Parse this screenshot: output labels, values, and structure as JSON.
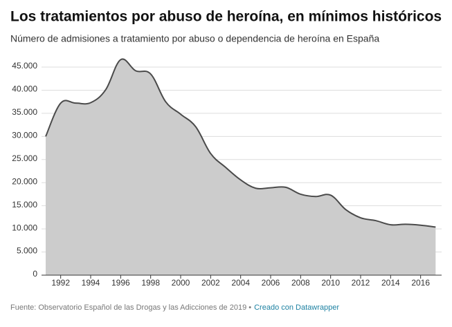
{
  "chart_data": {
    "type": "area",
    "title": "Los tratamientos por abuso de heroína, en mínimos históricos",
    "subtitle": "Número de admisiones a tratamiento por abuso o dependencia de heroína en España",
    "source": "Fuente: Observatorio Español de las Drogas y las Adicciones de 2019 •",
    "credit": "Creado con Datawrapper",
    "x": [
      1991,
      1992,
      1993,
      1994,
      1995,
      1996,
      1997,
      1998,
      1999,
      2000,
      2001,
      2002,
      2003,
      2004,
      2005,
      2006,
      2007,
      2008,
      2009,
      2010,
      2011,
      2012,
      2013,
      2014,
      2015,
      2016,
      2017
    ],
    "values": [
      30000,
      37200,
      37200,
      37300,
      40100,
      46600,
      44200,
      43500,
      37500,
      34800,
      32100,
      26300,
      23300,
      20600,
      18800,
      18900,
      19000,
      17500,
      17000,
      17300,
      14200,
      12400,
      11800,
      10900,
      11000,
      10800,
      10400
    ],
    "color": "#cccccc",
    "line_color": "#4a4a4a",
    "xlim": [
      1991,
      2017.4
    ],
    "xticks": [
      1992,
      1994,
      1996,
      1998,
      2000,
      2002,
      2004,
      2006,
      2008,
      2010,
      2012,
      2014,
      2016
    ],
    "ylim": [
      0,
      45000
    ],
    "yticks": [
      0,
      {
        "value": 5000,
        "label": "5.000"
      },
      {
        "value": 10000,
        "label": "10.000"
      },
      {
        "value": 15000,
        "label": "15.000"
      },
      {
        "value": 20000,
        "label": "20.000"
      },
      {
        "value": 25000,
        "label": "25.000"
      },
      {
        "value": 30000,
        "label": "30.000"
      },
      {
        "value": 35000,
        "label": "35.000"
      },
      {
        "value": 40000,
        "label": "40.000"
      },
      {
        "value": 45000,
        "label": "45.000"
      }
    ],
    "grid": true
  }
}
